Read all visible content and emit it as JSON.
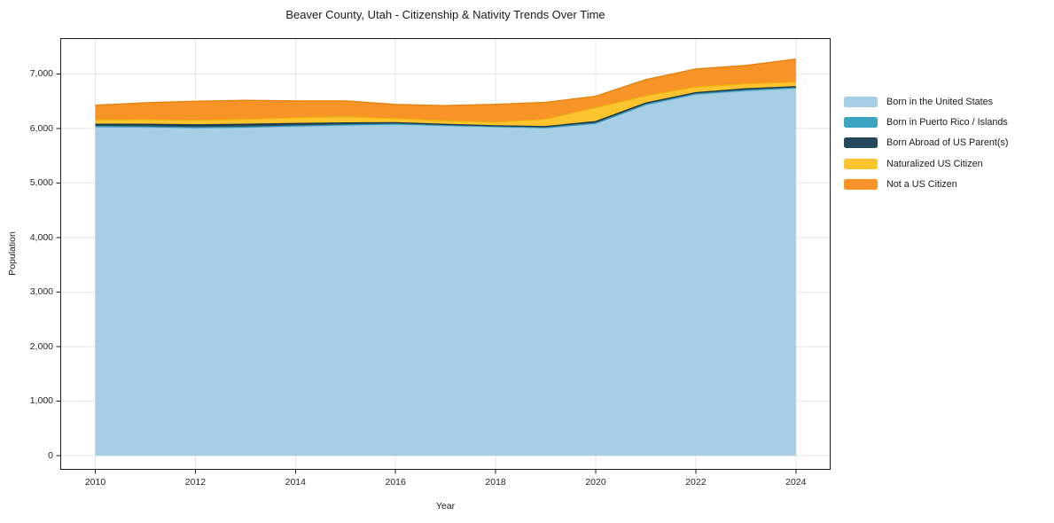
{
  "figure": {
    "title": "Beaver County, Utah - Citizenship & Nativity Trends Over Time",
    "xlabel": "Year",
    "ylabel": "Population"
  },
  "chart_data": {
    "type": "area",
    "stacked": true,
    "title": "Beaver County, Utah - Citizenship & Nativity Trends Over Time",
    "xlabel": "Year",
    "ylabel": "Population",
    "grid": true,
    "legend_position": "right-outside",
    "x": [
      2010,
      2011,
      2012,
      2013,
      2014,
      2015,
      2016,
      2017,
      2018,
      2019,
      2020,
      2021,
      2022,
      2023,
      2024
    ],
    "series": [
      {
        "name": "Born in the United States",
        "color": "#a6cfe5",
        "edge_color": "#8fc1da",
        "values": [
          6030,
          6025,
          6010,
          6020,
          6040,
          6060,
          6075,
          6050,
          6030,
          6010,
          6090,
          6430,
          6625,
          6690,
          6735
        ]
      },
      {
        "name": "Born in Puerto Rico / Islands",
        "color": "#3da4c2",
        "edge_color": "#3492b0",
        "values": [
          10,
          10,
          10,
          10,
          10,
          10,
          10,
          10,
          8,
          8,
          10,
          15,
          15,
          15,
          15
        ]
      },
      {
        "name": "Born Abroad of US Parent(s)",
        "color": "#25485c",
        "edge_color": "#1b3748",
        "values": [
          40,
          45,
          50,
          50,
          45,
          35,
          25,
          18,
          15,
          20,
          30,
          25,
          20,
          25,
          20
        ]
      },
      {
        "name": "Naturalized US Citizen",
        "color": "#fcc42e",
        "edge_color": "#edb112",
        "values": [
          80,
          85,
          85,
          90,
          105,
          115,
          75,
          65,
          65,
          135,
          255,
          130,
          105,
          90,
          85
        ]
      },
      {
        "name": "Not a US Citizen",
        "color": "#f79327",
        "edge_color": "#e2830f",
        "values": [
          270,
          310,
          350,
          350,
          310,
          290,
          260,
          280,
          330,
          310,
          210,
          300,
          330,
          340,
          420
        ]
      }
    ],
    "stack_totals": [
      6430,
      6475,
      6505,
      6520,
      6510,
      6510,
      6445,
      6423,
      6448,
      6483,
      6595,
      6900,
      7095,
      7160,
      7275
    ],
    "xticks": [
      2010,
      2012,
      2014,
      2016,
      2018,
      2020,
      2022,
      2024
    ],
    "xtick_labels": [
      "2010",
      "2012",
      "2014",
      "2016",
      "2018",
      "2020",
      "2022",
      "2024"
    ],
    "yticks": [
      0,
      1000,
      2000,
      3000,
      4000,
      5000,
      6000,
      7000
    ],
    "ytick_labels": [
      "0",
      "1,000",
      "2,000",
      "3,000",
      "4,000",
      "5,000",
      "6,000",
      "7,000"
    ],
    "xlim": [
      2009.3,
      2024.7
    ],
    "ylim": [
      -260,
      7660
    ],
    "grid_color": "#e6e6e6",
    "spine_color": "#1a1a1a",
    "background_color": "#ffffff"
  }
}
